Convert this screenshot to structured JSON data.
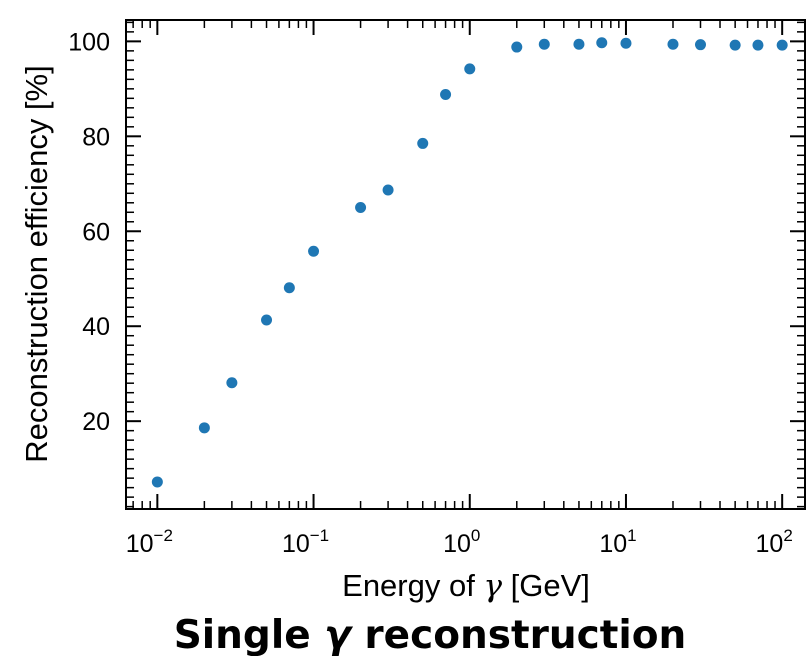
{
  "chart_data": {
    "type": "scatter",
    "title": "",
    "caption": {
      "prefix": "Single ",
      "symbol": "γ",
      "suffix": " reconstruction"
    },
    "xlabel": {
      "prefix": "Energy of ",
      "symbol": "γ",
      "suffix": " [GeV]"
    },
    "ylabel": "Reconstruction efficiency [%]",
    "x_scale": "log",
    "xlim": [
      0.0063,
      140
    ],
    "ylim": [
      1.5,
      104.5
    ],
    "grid": false,
    "color": "#1f77b4",
    "x_ticks": [
      {
        "value": 0.01,
        "base": "10",
        "exp": "−2"
      },
      {
        "value": 0.1,
        "base": "10",
        "exp": "−1"
      },
      {
        "value": 1,
        "base": "10",
        "exp": "0"
      },
      {
        "value": 10,
        "base": "10",
        "exp": "1"
      },
      {
        "value": 100,
        "base": "10",
        "exp": "2"
      }
    ],
    "y_ticks": [
      20,
      40,
      60,
      80,
      100
    ],
    "x": [
      0.01,
      0.02,
      0.03,
      0.05,
      0.07,
      0.1,
      0.2,
      0.3,
      0.5,
      0.7,
      1,
      2,
      3,
      5,
      7,
      10,
      20,
      30,
      50,
      70,
      100
    ],
    "y": [
      7.2,
      18.6,
      28.1,
      41.3,
      48.1,
      55.8,
      65.0,
      68.7,
      78.5,
      88.8,
      94.2,
      98.8,
      99.4,
      99.4,
      99.7,
      99.6,
      99.4,
      99.3,
      99.2,
      99.2,
      99.2
    ]
  }
}
